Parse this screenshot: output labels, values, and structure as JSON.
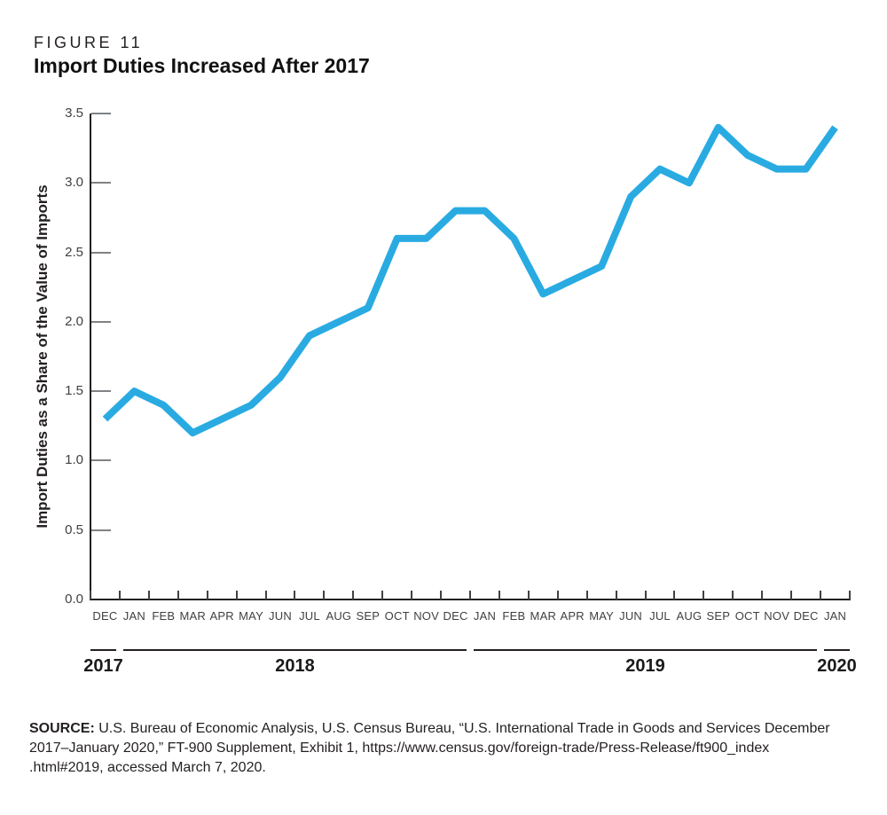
{
  "figure": {
    "label": "FIGURE 11",
    "title": "Import Duties Increased After 2017"
  },
  "chart_data": {
    "type": "line",
    "title": "Import Duties Increased After 2017",
    "xlabel": "",
    "ylabel": "Import Duties as a Share of the Value of Imports",
    "ylim": [
      0.0,
      3.5
    ],
    "ytick_labels": [
      "3.5",
      "3.0",
      "2.5",
      "2.0",
      "1.5",
      "1.0",
      "0.5",
      "0.0"
    ],
    "grid": false,
    "legend_position": "none",
    "line_color": "#29ABE2",
    "categories": [
      "DEC",
      "JAN",
      "FEB",
      "MAR",
      "APR",
      "MAY",
      "JUN",
      "JUL",
      "AUG",
      "SEP",
      "OCT",
      "NOV",
      "DEC",
      "JAN",
      "FEB",
      "MAR",
      "APR",
      "MAY",
      "JUN",
      "JUL",
      "AUG",
      "SEP",
      "OCT",
      "NOV",
      "DEC",
      "JAN"
    ],
    "values": [
      1.3,
      1.5,
      1.4,
      1.2,
      1.3,
      1.4,
      1.6,
      1.9,
      2.0,
      2.1,
      2.6,
      2.6,
      2.8,
      2.8,
      2.6,
      2.2,
      2.3,
      2.4,
      2.9,
      3.1,
      3.0,
      3.4,
      3.2,
      3.1,
      3.1,
      3.4
    ],
    "year_groups": [
      {
        "label": "2017",
        "start_index": 0,
        "months": 1
      },
      {
        "label": "2018",
        "start_index": 1,
        "months": 12
      },
      {
        "label": "2019",
        "start_index": 13,
        "months": 12
      },
      {
        "label": "2020",
        "start_index": 25,
        "months": 1
      }
    ]
  },
  "source": {
    "label": "SOURCE:",
    "line1": "U.S. Bureau of Economic Analysis, U.S. Census Bureau, “U.S. International Trade in Goods and Services December",
    "line2": "2017–January 2020,” FT-900 Supplement, Exhibit 1, https://www.census.gov/foreign-trade/Press-Release/ft900_index",
    "line3": ".html#2019, accessed March 7, 2020."
  }
}
